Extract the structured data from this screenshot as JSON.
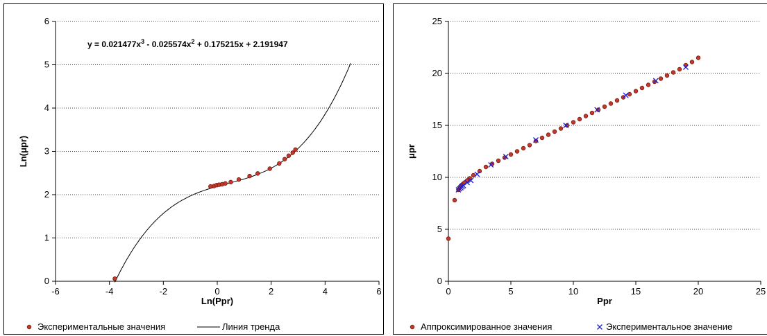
{
  "chart_data": [
    {
      "type": "scatter",
      "title": "",
      "xlabel": "Ln(Ppr)",
      "ylabel": "Ln(μpr)",
      "xlim": [
        -6,
        6
      ],
      "ylim": [
        0,
        6
      ],
      "xticks": [
        "-6",
        "-4",
        "-2",
        "0",
        "2",
        "4",
        "6"
      ],
      "yticks": [
        "0",
        "1",
        "2",
        "3",
        "4",
        "5",
        "6"
      ],
      "grid": "horizontal dotted",
      "legend_position": "bottom",
      "annotation": {
        "base": "y = 0.021477x",
        "exp1": "3",
        "mid1": " - 0.025574x",
        "exp2": "2",
        "tail": " + 0.175215x + 2.191947"
      },
      "series": [
        {
          "name": "Экспериментальные значения",
          "color": "#c0392b",
          "marker": "circle",
          "x": [
            -3.8,
            -0.25,
            -0.12,
            -0.02,
            0.07,
            0.18,
            0.3,
            0.5,
            0.8,
            1.2,
            1.5,
            1.95,
            2.3,
            2.5,
            2.65,
            2.8,
            2.9
          ],
          "y": [
            0.06,
            2.19,
            2.2,
            2.22,
            2.23,
            2.24,
            2.26,
            2.29,
            2.35,
            2.43,
            2.49,
            2.6,
            2.72,
            2.82,
            2.9,
            2.97,
            3.04
          ]
        },
        {
          "name": "Линия тренда",
          "color": "#000000",
          "line": "solid",
          "coefficients": [
            0.021477,
            -0.025574,
            0.175215,
            2.191947
          ],
          "x_range": [
            -3.8,
            4.95
          ]
        }
      ]
    },
    {
      "type": "scatter",
      "title": "",
      "xlabel": "Ppr",
      "ylabel": "μpr",
      "xlim": [
        0,
        25
      ],
      "ylim": [
        0,
        25
      ],
      "xticks": [
        "0",
        "5",
        "10",
        "15",
        "20",
        "25"
      ],
      "yticks": [
        "0",
        "5",
        "10",
        "15",
        "20",
        "25"
      ],
      "grid": "horizontal dotted",
      "legend_position": "bottom",
      "series": [
        {
          "name": "Аппроксимированное значения",
          "color": "#c0392b",
          "marker": "circle",
          "x": [
            0.0,
            0.5,
            0.8,
            0.9,
            1.0,
            1.1,
            1.2,
            1.3,
            1.5,
            1.7,
            2.0,
            2.5,
            3.0,
            3.5,
            4.0,
            4.5,
            5.0,
            5.5,
            6.0,
            6.5,
            7.0,
            7.5,
            8.0,
            8.5,
            9.0,
            9.5,
            10.0,
            10.5,
            11.0,
            11.5,
            12.0,
            12.5,
            13.0,
            13.5,
            14.0,
            14.5,
            15.0,
            15.5,
            16.0,
            16.5,
            17.0,
            17.5,
            18.0,
            18.5,
            19.0,
            19.5,
            20.0
          ],
          "y": [
            4.1,
            7.8,
            8.8,
            9.0,
            9.2,
            9.3,
            9.4,
            9.5,
            9.7,
            9.9,
            10.2,
            10.6,
            11.0,
            11.3,
            11.6,
            11.9,
            12.2,
            12.5,
            12.8,
            13.1,
            13.5,
            13.8,
            14.1,
            14.4,
            14.7,
            15.0,
            15.3,
            15.6,
            15.9,
            16.2,
            16.5,
            16.8,
            17.1,
            17.4,
            17.7,
            18.0,
            18.3,
            18.6,
            18.9,
            19.2,
            19.5,
            19.8,
            20.1,
            20.4,
            20.8,
            21.1,
            21.5
          ]
        },
        {
          "name": "Экспериментальное значение",
          "color": "#1f1fcc",
          "marker": "x",
          "x": [
            0.8,
            0.9,
            1.0,
            1.1,
            1.2,
            1.5,
            1.8,
            2.3,
            3.4,
            4.6,
            7.0,
            9.4,
            11.9,
            14.2,
            16.6,
            19.0
          ],
          "y": [
            8.8,
            8.9,
            9.0,
            9.1,
            9.2,
            9.5,
            9.7,
            10.3,
            11.2,
            12.0,
            13.6,
            15.0,
            16.5,
            17.9,
            19.3,
            20.6
          ]
        }
      ]
    }
  ]
}
